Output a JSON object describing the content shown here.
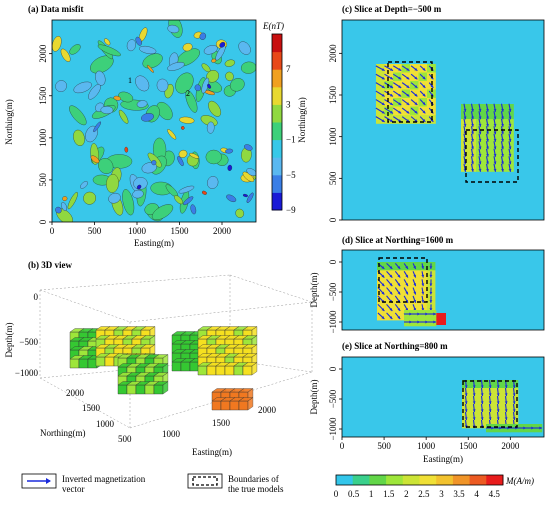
{
  "chart_data": [
    {
      "type": "heatmap",
      "title": "(a) Data misfit",
      "xlabel": "Easting(m)",
      "ylabel": "Northing(m)",
      "xlim": [
        0,
        2400
      ],
      "ylim": [
        0,
        2400
      ],
      "x_ticks": [
        "0",
        "500",
        "1000",
        "1500",
        "2000"
      ],
      "y_ticks": [
        "0",
        "500",
        "1000",
        "1500",
        "2000"
      ],
      "contour_labels": [
        "1",
        "2"
      ],
      "colorbar": {
        "label": "E(nT)",
        "ticks": [
          "7",
          "3",
          "−1",
          "−5",
          "−9"
        ],
        "range": [
          -9,
          11
        ],
        "colors": [
          "#1a1ad6",
          "#3a7ee6",
          "#5ab8f0",
          "#37c8e8",
          "#3dd07a",
          "#90d840",
          "#e8d830",
          "#f0a020",
          "#e84818",
          "#c81010"
        ]
      },
      "background": "#39c7ea"
    },
    {
      "type": "scatter",
      "title": "(b) 3D view",
      "xlabel": "Easting(m)",
      "ylabel": "Northing(m)",
      "zlabel": "Depth(m)",
      "x_ticks": [
        "1000",
        "1500",
        "2000"
      ],
      "y_ticks": [
        "500",
        "1000",
        "1500",
        "2000"
      ],
      "z_ticks": [
        "0",
        "−500",
        "−1000"
      ],
      "box_colors": [
        "#f5e020",
        "#9ee63a",
        "#35c832",
        "#f07820"
      ]
    },
    {
      "type": "heatmap",
      "title": "(c) Slice at Depth=−500 m",
      "ylabel": "Northing(m)",
      "xlim": [
        0,
        2400
      ],
      "ylim": [
        0,
        2400
      ],
      "y_ticks": [
        "0",
        "500",
        "1000",
        "1500",
        "2000"
      ],
      "background": "#39c7ea"
    },
    {
      "type": "heatmap",
      "title": "(d) Slice at Northing=1600 m",
      "ylabel": "Depth(m)",
      "y_ticks": [
        "0",
        "−500",
        "−1000"
      ],
      "background": "#39c7ea"
    },
    {
      "type": "heatmap",
      "title": "(e) Slice at Northing=800 m",
      "xlabel": "Easting(m)",
      "ylabel": "Depth(m)",
      "x_ticks": [
        "0",
        "500",
        "1000",
        "1500",
        "2000"
      ],
      "y_ticks": [
        "0",
        "−500",
        "−1000"
      ],
      "background": "#39c7ea"
    }
  ],
  "legend": {
    "arrow_label": "Inverted magnetization vector",
    "box_label": "Boundaries of the true models"
  },
  "bottom_colorbar": {
    "ticks": [
      "0",
      "0.5",
      "1",
      "1.5",
      "2",
      "2.5",
      "3",
      "3.5",
      "4",
      "4.5"
    ],
    "label": "M(A/m)",
    "colors": [
      "#33c6ea",
      "#3ad08c",
      "#62d648",
      "#9ee63a",
      "#cce436",
      "#f0e036",
      "#f2c22e",
      "#f09428",
      "#ec5a22",
      "#e81c1c"
    ]
  }
}
